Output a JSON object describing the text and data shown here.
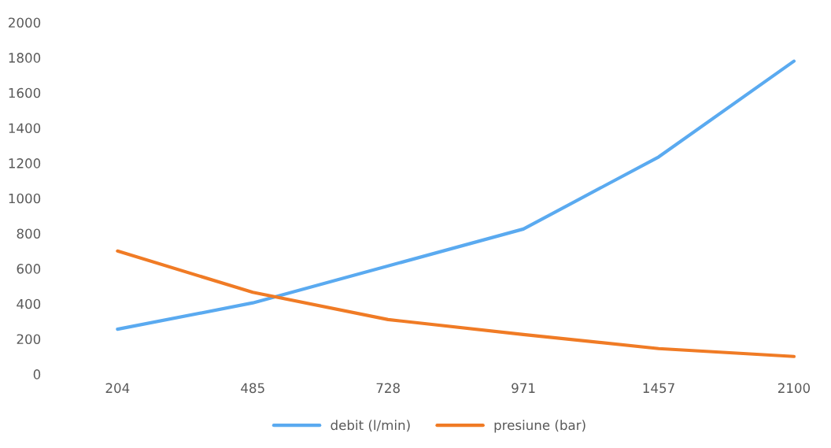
{
  "chart_data": {
    "type": "line",
    "categories": [
      "204",
      "485",
      "728",
      "971",
      "1457",
      "2100"
    ],
    "series": [
      {
        "name": "debit (l/min)",
        "color": "#5aaaf0",
        "values": [
          255,
          405,
          615,
          825,
          1235,
          1780
        ]
      },
      {
        "name": "presiune (bar)",
        "color": "#f07b25",
        "values": [
          700,
          465,
          310,
          225,
          145,
          100
        ]
      }
    ],
    "ylim": [
      0,
      2000
    ],
    "yticks": [
      0,
      200,
      400,
      600,
      800,
      1000,
      1200,
      1400,
      1600,
      1800,
      2000
    ],
    "grid": false,
    "legend": "bottom",
    "marker": "none",
    "line_style": "solid"
  }
}
